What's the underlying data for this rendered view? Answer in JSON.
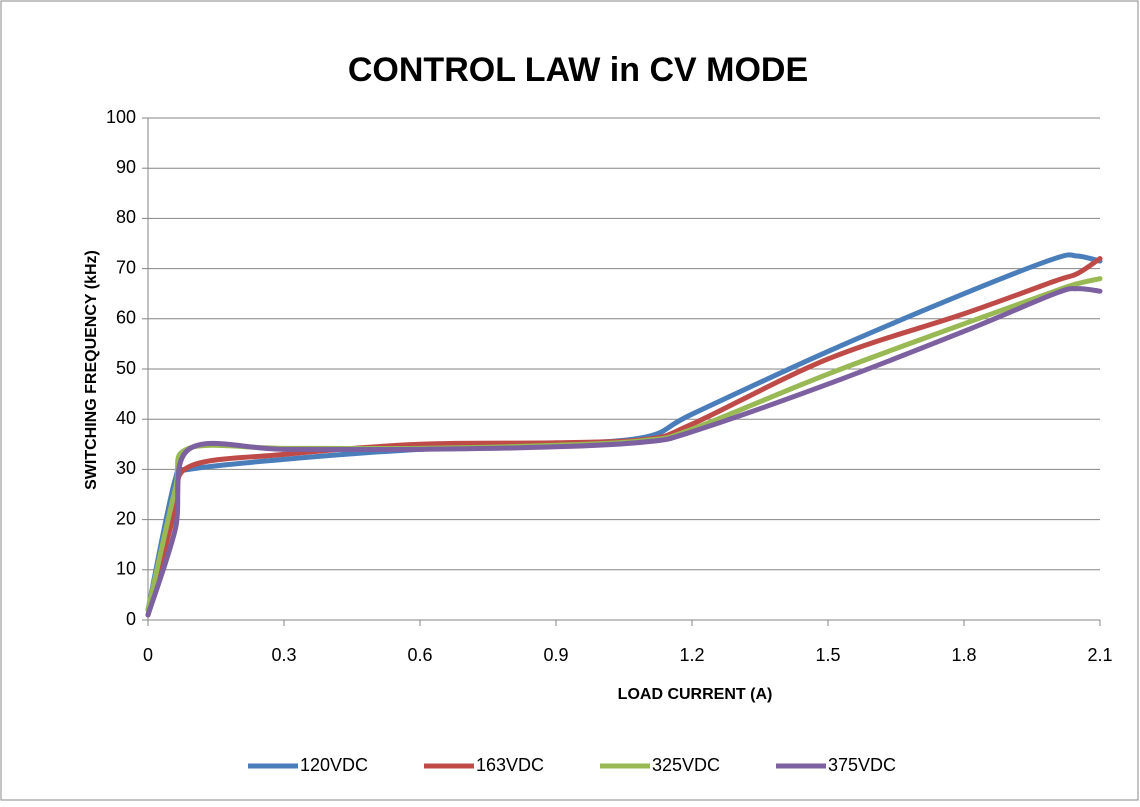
{
  "chart_data": {
    "type": "line",
    "title": "CONTROL LAW in CV MODE",
    "x_label": "LOAD CURRENT (A)",
    "y_label": "SWITCHING FREQUENCY (kHz)",
    "x": [
      0,
      0.06,
      0.09,
      0.3,
      0.6,
      0.9,
      1.1,
      1.2,
      1.5,
      1.8,
      2.0,
      2.05,
      2.1
    ],
    "series": [
      {
        "name": "120VDC",
        "color": "#4a7ebb",
        "values": [
          2,
          28,
          30,
          32,
          34,
          35,
          36.5,
          41,
          53.5,
          65,
          72,
          72.5,
          71.5
        ]
      },
      {
        "name": "163VDC",
        "color": "#be4b48",
        "values": [
          1,
          22,
          30.5,
          33,
          35,
          35.3,
          36,
          39,
          52,
          61,
          67.5,
          69,
          72
        ]
      },
      {
        "name": "325VDC",
        "color": "#98b954",
        "values": [
          2,
          26,
          34.2,
          34.2,
          34.2,
          34.8,
          35.8,
          38,
          49,
          59,
          65.5,
          67,
          68
        ]
      },
      {
        "name": "375VDC",
        "color": "#7d60a0",
        "values": [
          1,
          18,
          34,
          34,
          34,
          34.5,
          35.5,
          37.5,
          47,
          57.5,
          65,
          66,
          65.5
        ]
      }
    ],
    "xlim": [
      0,
      2.1
    ],
    "xticks": [
      0,
      0.3,
      0.6,
      0.9,
      1.2,
      1.5,
      1.8,
      2.1
    ],
    "ylim": [
      0,
      100
    ],
    "yticks": [
      0,
      10,
      20,
      30,
      40,
      50,
      60,
      70,
      80,
      90,
      100
    ],
    "grid": true,
    "legend": "bottom"
  }
}
